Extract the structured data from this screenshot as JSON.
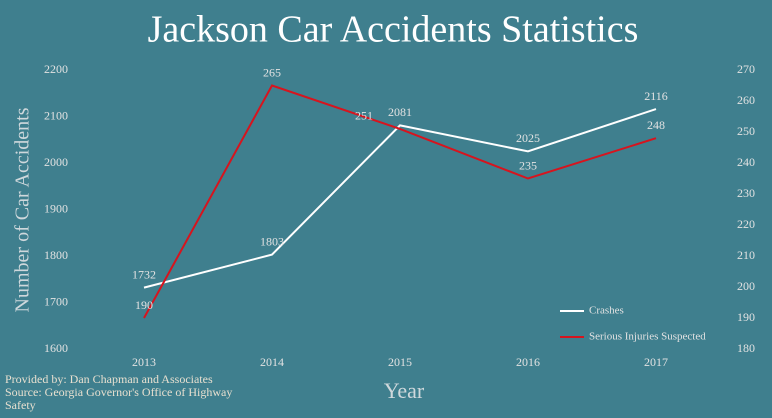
{
  "chart_data": {
    "type": "line",
    "title": "Jackson Car Accidents Statistics",
    "x_label": "Year",
    "y_label": "Number of Car Accidents",
    "categories": [
      "2013",
      "2014",
      "2015",
      "2016",
      "2017"
    ],
    "series": [
      {
        "name": "Crashes",
        "color": "#ffffff",
        "values": [
          1732,
          1803,
          2081,
          2025,
          2116
        ]
      },
      {
        "name": "Serious Injuries Suspected",
        "color": "#d7141e",
        "axis": "y2",
        "values": [
          190,
          265,
          251,
          235,
          248
        ]
      }
    ],
    "ylim": [
      1600,
      2200
    ],
    "yticks": [
      1600,
      1700,
      1800,
      1900,
      2000,
      2100,
      2200
    ],
    "y2lim": [
      180,
      270
    ],
    "y2ticks": [
      180,
      190,
      200,
      210,
      220,
      230,
      240,
      250,
      260,
      270
    ],
    "legend": "lower right",
    "notes": [
      "Provided by: Dan Chapman and Associates",
      "Source: Georgia Governor's Office of Highway Safety"
    ]
  }
}
